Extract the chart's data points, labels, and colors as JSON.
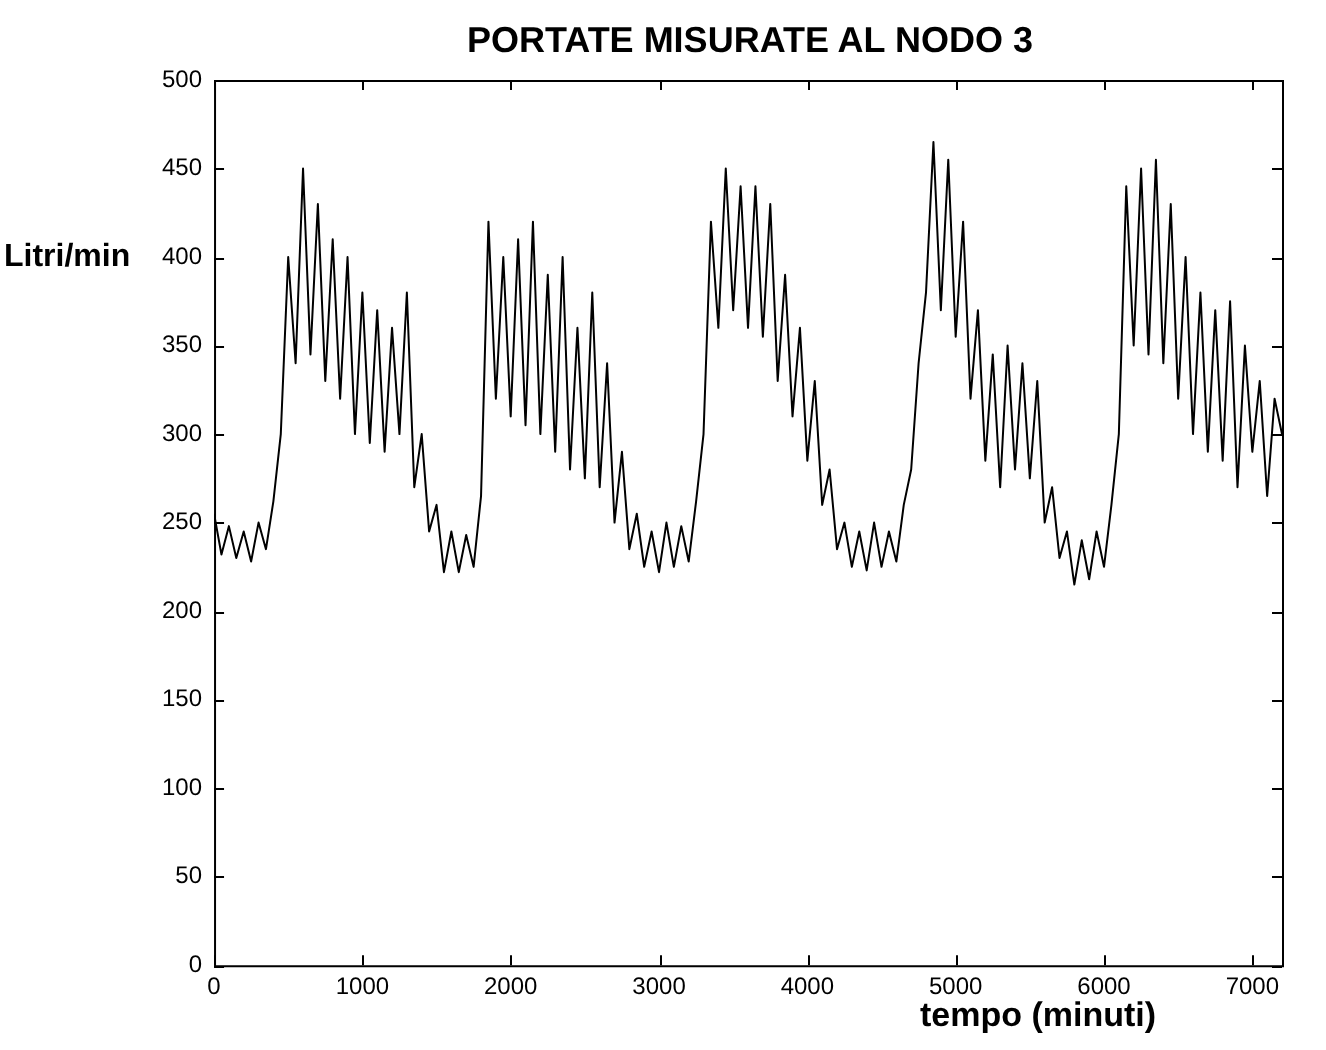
{
  "chart_data": {
    "type": "line",
    "title": "PORTATE MISURATE AL NODO 3",
    "xlabel": "tempo (minuti)",
    "ylabel": "Litri/min",
    "x": [
      0,
      50,
      100,
      150,
      200,
      250,
      300,
      350,
      400,
      450,
      500,
      550,
      600,
      650,
      700,
      750,
      800,
      850,
      900,
      950,
      1000,
      1050,
      1100,
      1150,
      1200,
      1250,
      1300,
      1350,
      1400,
      1450,
      1500,
      1550,
      1600,
      1650,
      1700,
      1750,
      1800,
      1850,
      1900,
      1950,
      2000,
      2050,
      2100,
      2150,
      2200,
      2250,
      2300,
      2350,
      2400,
      2450,
      2500,
      2550,
      2600,
      2650,
      2700,
      2750,
      2800,
      2850,
      2900,
      2950,
      3000,
      3050,
      3100,
      3150,
      3200,
      3250,
      3300,
      3350,
      3400,
      3450,
      3500,
      3550,
      3600,
      3650,
      3700,
      3750,
      3800,
      3850,
      3900,
      3950,
      4000,
      4050,
      4100,
      4150,
      4200,
      4250,
      4300,
      4350,
      4400,
      4450,
      4500,
      4550,
      4600,
      4650,
      4700,
      4750,
      4800,
      4850,
      4900,
      4950,
      5000,
      5050,
      5100,
      5150,
      5200,
      5250,
      5300,
      5350,
      5400,
      5450,
      5500,
      5550,
      5600,
      5650,
      5700,
      5750,
      5800,
      5850,
      5900,
      5950,
      6000,
      6050,
      6100,
      6150,
      6200,
      6250,
      6300,
      6350,
      6400,
      6450,
      6500,
      6550,
      6600,
      6650,
      6700,
      6750,
      6800,
      6850,
      6900,
      6950,
      7000,
      7050,
      7100,
      7150,
      7200
    ],
    "series": [
      {
        "color": "#000000",
        "values": [
          255,
          232,
          248,
          230,
          245,
          228,
          250,
          235,
          262,
          300,
          400,
          340,
          450,
          345,
          430,
          330,
          410,
          320,
          400,
          300,
          380,
          295,
          370,
          290,
          360,
          300,
          380,
          270,
          300,
          245,
          260,
          222,
          245,
          222,
          243,
          225,
          265,
          420,
          320,
          400,
          310,
          410,
          305,
          420,
          300,
          390,
          290,
          400,
          280,
          360,
          275,
          380,
          270,
          340,
          250,
          290,
          235,
          255,
          225,
          245,
          222,
          250,
          225,
          248,
          228,
          262,
          300,
          420,
          360,
          450,
          370,
          440,
          360,
          440,
          355,
          430,
          330,
          390,
          310,
          360,
          285,
          330,
          260,
          280,
          235,
          250,
          225,
          245,
          223,
          250,
          225,
          245,
          228,
          260,
          280,
          340,
          380,
          465,
          370,
          455,
          355,
          420,
          320,
          370,
          285,
          345,
          270,
          350,
          280,
          340,
          275,
          330,
          250,
          270,
          230,
          245,
          215,
          240,
          218,
          245,
          225,
          260,
          300,
          440,
          350,
          450,
          345,
          455,
          340,
          430,
          320,
          400,
          300,
          380,
          290,
          370,
          285,
          375,
          270,
          350,
          290,
          330,
          265,
          320,
          300
        ]
      }
    ],
    "xlim": [
      0,
      7200
    ],
    "xticks": [
      0,
      1000,
      2000,
      3000,
      4000,
      5000,
      6000,
      7000
    ],
    "ylim": [
      0,
      500
    ],
    "yticks": [
      0,
      50,
      100,
      150,
      200,
      250,
      300,
      350,
      400,
      450,
      500
    ],
    "grid": false,
    "legend": false,
    "marker": "none",
    "line_style": "solid"
  }
}
